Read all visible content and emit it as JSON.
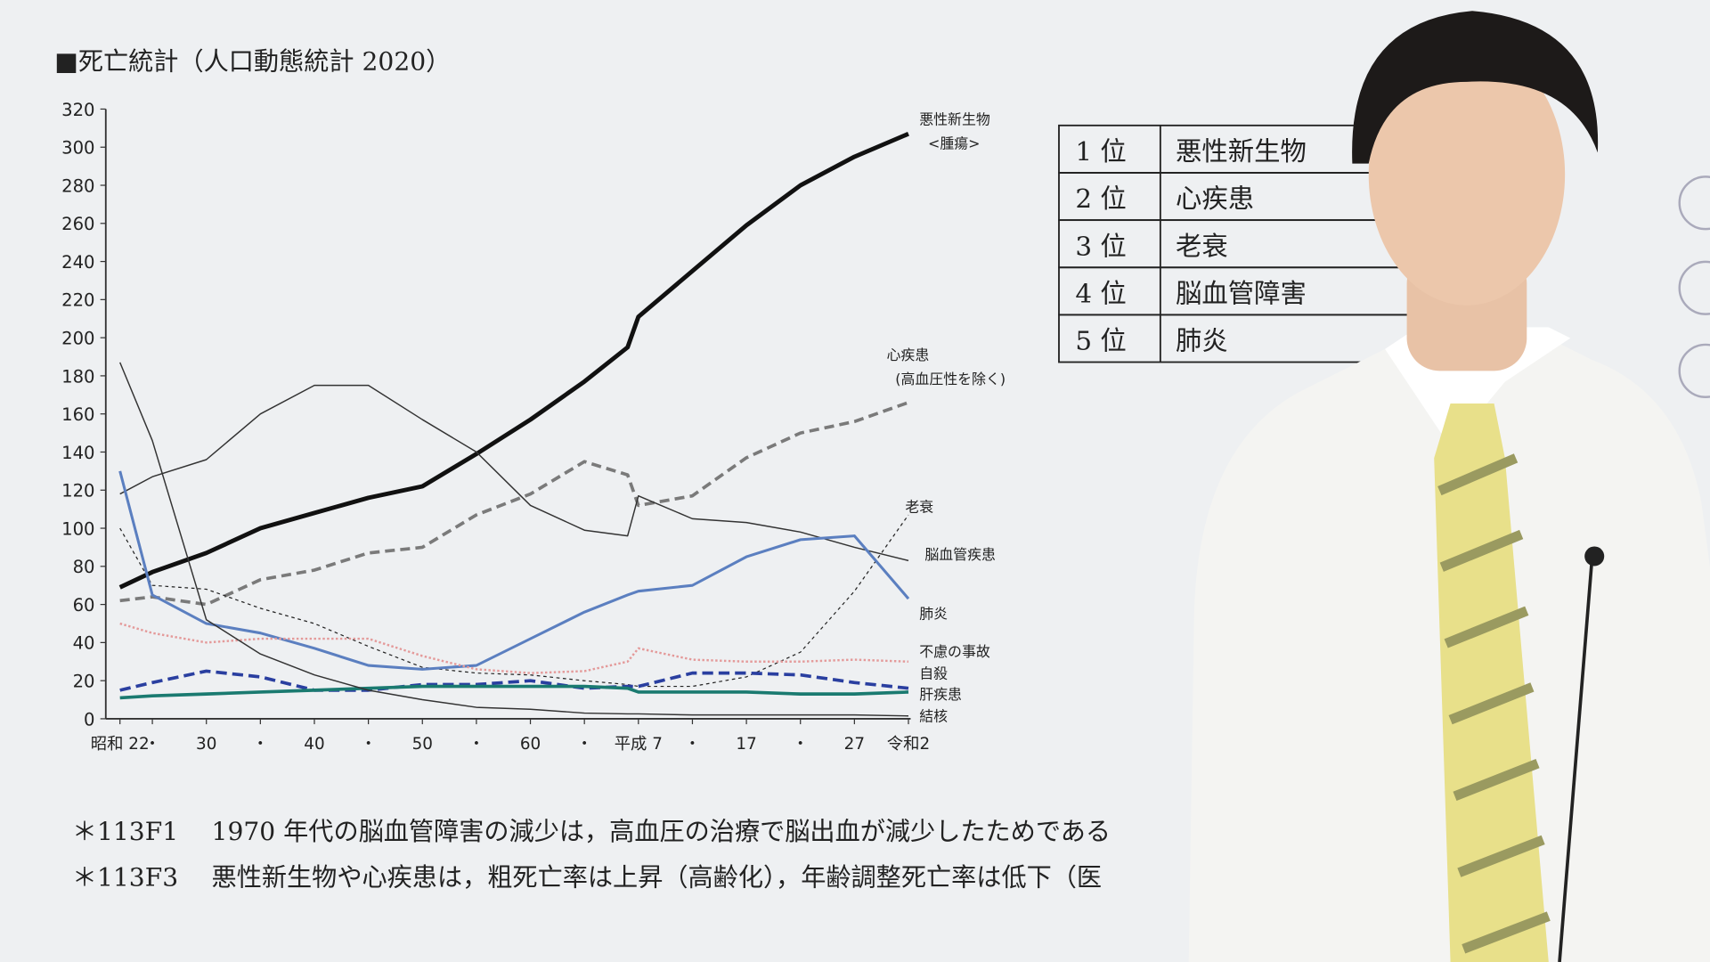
{
  "title": "■死亡統計（人口動態統計 2020）",
  "chart_data": {
    "type": "line",
    "x": [
      1947,
      1950,
      1955,
      1960,
      1965,
      1970,
      1975,
      1980,
      1985,
      1990,
      1994,
      1995,
      2000,
      2005,
      2010,
      2015,
      2020
    ],
    "xlim": [
      1947,
      2020
    ],
    "xticks": [
      {
        "value": 1947,
        "label": "昭和 22"
      },
      {
        "value": 1950,
        "label": "・"
      },
      {
        "value": 1955,
        "label": "30"
      },
      {
        "value": 1960,
        "label": "・"
      },
      {
        "value": 1965,
        "label": "40"
      },
      {
        "value": 1970,
        "label": "・"
      },
      {
        "value": 1975,
        "label": "50"
      },
      {
        "value": 1980,
        "label": "・"
      },
      {
        "value": 1985,
        "label": "60"
      },
      {
        "value": 1990,
        "label": "・"
      },
      {
        "value": 1995,
        "label": "平成 7"
      },
      {
        "value": 2000,
        "label": "・"
      },
      {
        "value": 2005,
        "label": "17"
      },
      {
        "value": 2010,
        "label": "・"
      },
      {
        "value": 2015,
        "label": "27"
      },
      {
        "value": 2020,
        "label": "令和2"
      }
    ],
    "ylim": [
      0,
      320
    ],
    "yticks": [
      0,
      20,
      40,
      60,
      80,
      100,
      120,
      140,
      160,
      180,
      200,
      220,
      240,
      260,
      280,
      300,
      320
    ],
    "series": [
      {
        "name": "悪性新生物",
        "subname": "<腫瘍>",
        "color": "#111111",
        "values": [
          69,
          77,
          87,
          100,
          108,
          116,
          122,
          139,
          157,
          177,
          195,
          211,
          235,
          259,
          280,
          295,
          307
        ]
      },
      {
        "name": "心疾患",
        "subname": "(高血圧性を除く)",
        "color": "#7a7a7a",
        "values": [
          62,
          64,
          60,
          73,
          78,
          87,
          90,
          107,
          118,
          135,
          128,
          112,
          117,
          137,
          150,
          156,
          166
        ]
      },
      {
        "name": "老衰",
        "color": "#222222",
        "values": [
          100,
          70,
          68,
          58,
          50,
          38,
          27,
          24,
          23,
          20,
          18,
          17,
          17,
          22,
          35,
          67,
          107
        ]
      },
      {
        "name": "脳血管疾患",
        "color": "#333333",
        "values": [
          118,
          127,
          136,
          160,
          175,
          175,
          157,
          140,
          112,
          99,
          96,
          117,
          105,
          103,
          98,
          90,
          83
        ]
      },
      {
        "name": "肺炎",
        "color": "#5b7fc0",
        "values": [
          130,
          65,
          50,
          45,
          37,
          28,
          26,
          28,
          42,
          56,
          65,
          67,
          70,
          85,
          94,
          96,
          63
        ]
      },
      {
        "name": "不慮の事故",
        "color": "#e49a9a",
        "values": [
          50,
          45,
          40,
          42,
          42,
          42,
          33,
          26,
          24,
          25,
          30,
          37,
          31,
          30,
          30,
          31,
          30
        ]
      },
      {
        "name": "自殺",
        "color": "#2a3fa0",
        "values": [
          15,
          19,
          25,
          22,
          15,
          15,
          18,
          18,
          20,
          16,
          17,
          17,
          24,
          24,
          23,
          19,
          16
        ]
      },
      {
        "name": "肝疾患",
        "color": "#1a7a70",
        "values": [
          11,
          12,
          13,
          14,
          15,
          16,
          17,
          17,
          17,
          17,
          16,
          14,
          14,
          14,
          13,
          13,
          14
        ]
      },
      {
        "name": "結核",
        "color": "#333333",
        "values": [
          187,
          146,
          52,
          34,
          23,
          15,
          10,
          6,
          5,
          3,
          2.6,
          2.6,
          2,
          2,
          2,
          2,
          1.5
        ]
      }
    ]
  },
  "table": {
    "rows": [
      [
        "1 位",
        "悪性新生物"
      ],
      [
        "2 位",
        "心疾患"
      ],
      [
        "3 位",
        "老衰"
      ],
      [
        "4 位",
        "脳血管障害"
      ],
      [
        "5 位",
        "肺炎"
      ]
    ]
  },
  "notes": [
    {
      "code": "＊113F1",
      "text": "1970 年代の脳血管障害の減少は，高血圧の治療で脳出血が減少したためである"
    },
    {
      "code": "＊113F3",
      "text": "悪性新生物や心疾患は，粗死亡率は上昇（高齢化），年齢調整死亡率は低下（医"
    }
  ]
}
